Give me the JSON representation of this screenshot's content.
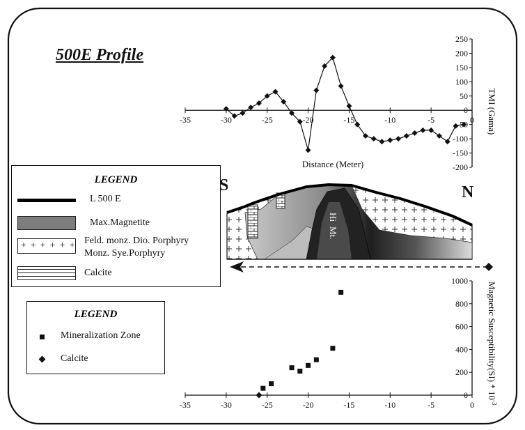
{
  "figure": {
    "title": "500E Profile",
    "section": {
      "left_label": "S",
      "right_label": "N",
      "core_label_1": "Hi",
      "core_label_2": "Mt."
    },
    "legend_geology": {
      "title": "LEGEND",
      "items": [
        {
          "label": "L 500 E"
        },
        {
          "label": "Max.Magnetite"
        },
        {
          "label": "Feld. monz. Dio. Porphyry"
        },
        {
          "label": "Monz. Sye.Porphyry"
        },
        {
          "label": "Calcite"
        }
      ]
    },
    "legend_points": {
      "title": "LEGEND",
      "items": [
        {
          "label": "Mineralization Zone"
        },
        {
          "label": "Calcite"
        }
      ]
    }
  },
  "chart_data": [
    {
      "type": "line",
      "xlabel": "Distance (Meter)",
      "ylabel": "TMI (Gama)",
      "xlim": [
        -35,
        0
      ],
      "ylim": [
        -200,
        250
      ],
      "x_ticks": [
        -35,
        -30,
        -25,
        -20,
        -15,
        -10,
        -5,
        0
      ],
      "y_ticks": [
        -200,
        -150,
        -100,
        -50,
        0,
        50,
        100,
        150,
        200,
        250
      ],
      "series": [
        {
          "x": [
            -30,
            -29,
            -28,
            -27,
            -26,
            -25,
            -24,
            -23,
            -22,
            -21,
            -20,
            -19,
            -18,
            -17,
            -16,
            -15,
            -14,
            -13,
            -12,
            -11,
            -10,
            -9,
            -8,
            -7,
            -6,
            -5,
            -4,
            -3,
            -2,
            -1
          ],
          "y": [
            5,
            -20,
            -10,
            10,
            25,
            50,
            65,
            30,
            -10,
            -40,
            -140,
            70,
            155,
            185,
            85,
            15,
            -50,
            -90,
            -100,
            -110,
            -105,
            -100,
            -90,
            -80,
            -70,
            -70,
            -90,
            -110,
            -55,
            -50
          ]
        }
      ]
    },
    {
      "type": "scatter",
      "ylabel": "Magnetic Susceptibility(SI) * 10",
      "ylabel_sup": "-3",
      "xlim": [
        -35,
        0
      ],
      "ylim": [
        0,
        1000
      ],
      "x_ticks": [
        -35,
        -30,
        -25,
        -20,
        -15,
        -10,
        -5,
        0
      ],
      "y_ticks": [
        0,
        200,
        400,
        600,
        800,
        1000
      ],
      "series": [
        {
          "name": "Mineralization Zone",
          "marker": "square",
          "x": [
            -25.5,
            -24.5,
            -22,
            -21,
            -20,
            -19,
            -17,
            -16
          ],
          "y": [
            60,
            100,
            240,
            210,
            260,
            310,
            410,
            900
          ]
        },
        {
          "name": "Calcite",
          "marker": "diamond",
          "x": [
            -26
          ],
          "y": [
            0
          ]
        }
      ]
    }
  ]
}
